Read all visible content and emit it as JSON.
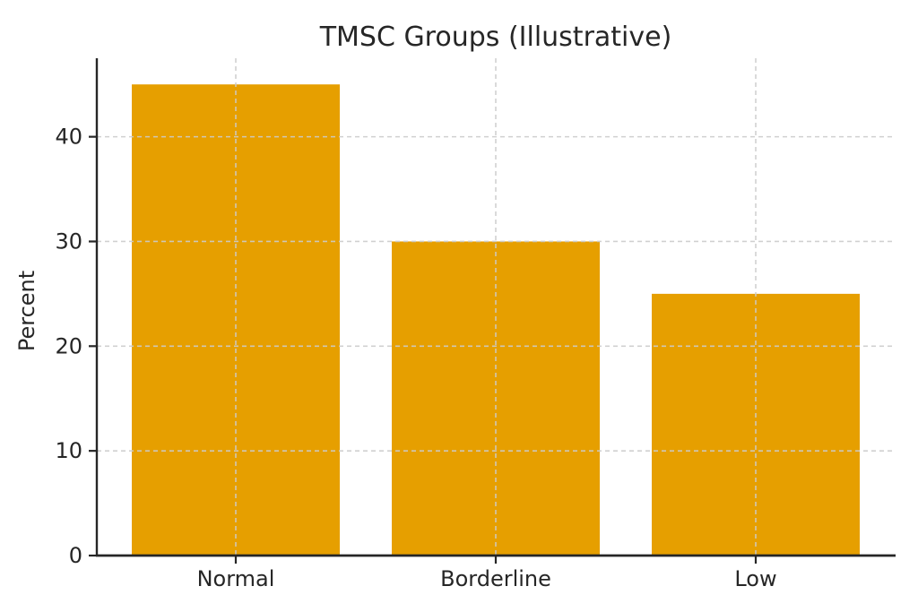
{
  "figure": {
    "background": "#ffffff"
  },
  "chart_data": {
    "type": "bar",
    "title": "TMSC Groups (Illustrative)",
    "categories": [
      "Normal",
      "Borderline",
      "Low"
    ],
    "values": [
      45,
      30,
      25
    ],
    "xlabel": "",
    "ylabel": "Percent",
    "yticks": [
      0,
      10,
      20,
      30,
      40
    ],
    "ylim": [
      0,
      47.5
    ],
    "bar_color": "#E69F00",
    "grid": {
      "visible": true,
      "style": "dashed",
      "color": "#cccccc",
      "orientation": "both",
      "drawn_above_bars": true
    },
    "spine_color": "#262626",
    "text_color": "#262626",
    "legend": "none"
  }
}
